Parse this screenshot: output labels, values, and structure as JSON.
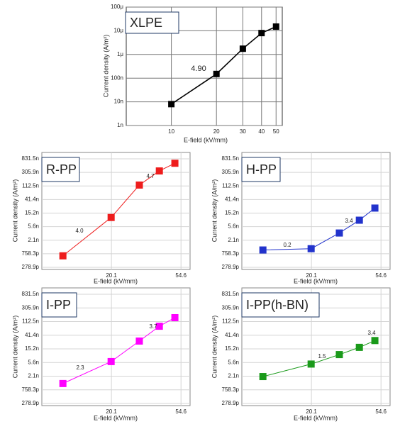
{
  "chart_data": [
    {
      "type": "line",
      "title": "XLPE",
      "x_label": "E-field (kV/mm)",
      "y_label": "Current density (A/m²)",
      "log_x": true,
      "log_y": true,
      "grid": true,
      "x": [
        10,
        20,
        30,
        40,
        50
      ],
      "series": [
        {
          "color": "#000000",
          "values": [
            8e-09,
            1.5e-07,
            1.75e-06,
            8e-06,
            1.5e-05
          ]
        }
      ],
      "annotations": [
        "4.90"
      ],
      "xlim": [
        5,
        55
      ],
      "xticks": [
        10,
        20,
        30,
        40,
        50
      ],
      "ylim": [
        1e-09,
        0.0001
      ],
      "yticks": [
        {
          "value": 1e-09,
          "label": "1n"
        },
        {
          "value": 1e-08,
          "label": "10n"
        },
        {
          "value": 1e-07,
          "label": "100n"
        },
        {
          "value": 1e-06,
          "label": "1μ"
        },
        {
          "value": 1e-05,
          "label": "10μ"
        },
        {
          "value": 0.0001,
          "label": "100μ"
        }
      ]
    },
    {
      "type": "line",
      "title": "R-PP",
      "x_label": "E-field (kV/mm)",
      "y_label": "Current density (A/m²)",
      "log_x": true,
      "log_y": true,
      "grid": true,
      "x": [
        10,
        20,
        30,
        40,
        50
      ],
      "series": [
        {
          "color": "#ee1c1c",
          "values": [
            6.5e-10,
            1.1e-08,
            1.2e-07,
            3.4e-07,
            6e-07
          ]
        }
      ],
      "annotations": [
        "4.0",
        "4.7"
      ],
      "xlim": [
        7.389,
        62.2
      ],
      "xticks": [
        {
          "value": 20.0855,
          "label": "20.1"
        },
        {
          "value": 54.5982,
          "label": "54.6"
        }
      ],
      "ylim": [
        2.38e-10,
        1.33e-06
      ],
      "yticks": [
        {
          "value": 2.789e-10,
          "label": "278.9p"
        },
        {
          "value": 7.583e-10,
          "label": "758.3p"
        },
        {
          "value": 2.061e-09,
          "label": "2.1n"
        },
        {
          "value": 5.603e-09,
          "label": "5.6n"
        },
        {
          "value": 1.523e-08,
          "label": "15.2n"
        },
        {
          "value": 4.14e-08,
          "label": "41.4n"
        },
        {
          "value": 1.125e-07,
          "label": "112.5n"
        },
        {
          "value": 3.059e-07,
          "label": "305.9n"
        },
        {
          "value": 8.315e-07,
          "label": "831.5n"
        }
      ]
    },
    {
      "type": "line",
      "title": "H-PP",
      "x_label": "E-field (kV/mm)",
      "y_label": "Current density (A/m²)",
      "log_x": true,
      "log_y": true,
      "grid": true,
      "x": [
        10,
        20,
        30,
        40,
        50
      ],
      "series": [
        {
          "color": "#2233cc",
          "values": [
            1e-09,
            1.1e-09,
            3.5e-09,
            9e-09,
            2.2e-08
          ]
        }
      ],
      "annotations": [
        "0.2",
        "3.4"
      ],
      "xlim": [
        7.389,
        62.2
      ],
      "xticks": [
        {
          "value": 20.0855,
          "label": "20.1"
        },
        {
          "value": 54.5982,
          "label": "54.6"
        }
      ],
      "ylim": [
        2.38e-10,
        1.33e-06
      ],
      "yticks": [
        {
          "value": 2.789e-10,
          "label": "278.9p"
        },
        {
          "value": 7.583e-10,
          "label": "758.3p"
        },
        {
          "value": 2.061e-09,
          "label": "2.1n"
        },
        {
          "value": 5.603e-09,
          "label": "5.6n"
        },
        {
          "value": 1.523e-08,
          "label": "15.2n"
        },
        {
          "value": 4.14e-08,
          "label": "41.4n"
        },
        {
          "value": 1.125e-07,
          "label": "112.5n"
        },
        {
          "value": 3.059e-07,
          "label": "305.9n"
        },
        {
          "value": 8.315e-07,
          "label": "831.5n"
        }
      ]
    },
    {
      "type": "line",
      "title": "I-PP",
      "x_label": "E-field (kV/mm)",
      "y_label": "Current density (A/m²)",
      "log_x": true,
      "log_y": true,
      "grid": true,
      "x": [
        10,
        20,
        30,
        40,
        50
      ],
      "series": [
        {
          "color": "#ff00ff",
          "values": [
            1.2e-09,
            6e-09,
            2.7e-08,
            8e-08,
            1.5e-07
          ]
        }
      ],
      "annotations": [
        "2.3",
        "3.7"
      ],
      "xlim": [
        7.389,
        62.2
      ],
      "xticks": [
        {
          "value": 20.0855,
          "label": "20.1"
        },
        {
          "value": 54.5982,
          "label": "54.6"
        }
      ],
      "ylim": [
        2.38e-10,
        1.33e-06
      ],
      "yticks": [
        {
          "value": 2.789e-10,
          "label": "278.9p"
        },
        {
          "value": 7.583e-10,
          "label": "758.3p"
        },
        {
          "value": 2.061e-09,
          "label": "2.1n"
        },
        {
          "value": 5.603e-09,
          "label": "5.6n"
        },
        {
          "value": 1.523e-08,
          "label": "15.2n"
        },
        {
          "value": 4.14e-08,
          "label": "41.4n"
        },
        {
          "value": 1.125e-07,
          "label": "112.5n"
        },
        {
          "value": 3.059e-07,
          "label": "305.9n"
        },
        {
          "value": 8.315e-07,
          "label": "831.5n"
        }
      ]
    },
    {
      "type": "line",
      "title": "I-PP(h-BN)",
      "x_label": "E-field (kV/mm)",
      "y_label": "Current density (A/m²)",
      "log_x": true,
      "log_y": true,
      "grid": true,
      "x": [
        10,
        20,
        30,
        40,
        50
      ],
      "series": [
        {
          "color": "#1a9a1a",
          "values": [
            2e-09,
            5e-09,
            1e-08,
            1.7e-08,
            2.8e-08
          ]
        }
      ],
      "annotations": [
        "1.5",
        "3.4"
      ],
      "xlim": [
        7.389,
        62.2
      ],
      "xticks": [
        {
          "value": 20.0855,
          "label": "20.1"
        },
        {
          "value": 54.5982,
          "label": "54.6"
        }
      ],
      "ylim": [
        2.38e-10,
        1.33e-06
      ],
      "yticks": [
        {
          "value": 2.789e-10,
          "label": "278.9p"
        },
        {
          "value": 7.583e-10,
          "label": "758.3p"
        },
        {
          "value": 2.061e-09,
          "label": "2.1n"
        },
        {
          "value": 5.603e-09,
          "label": "5.6n"
        },
        {
          "value": 1.523e-08,
          "label": "15.2n"
        },
        {
          "value": 4.14e-08,
          "label": "41.4n"
        },
        {
          "value": 1.125e-07,
          "label": "112.5n"
        },
        {
          "value": 3.059e-07,
          "label": "305.9n"
        },
        {
          "value": 8.315e-07,
          "label": "831.5n"
        }
      ]
    }
  ]
}
